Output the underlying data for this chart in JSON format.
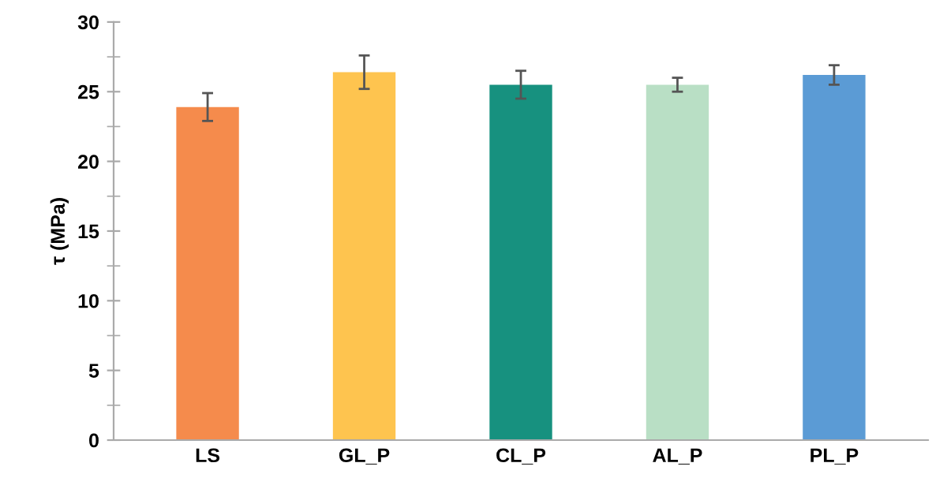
{
  "chart_data": {
    "type": "bar",
    "ylabel": "τ (MPa)",
    "categories": [
      "LS",
      "GL_P",
      "CL_P",
      "AL_P",
      "PL_P"
    ],
    "values": [
      23.9,
      26.4,
      25.5,
      25.5,
      26.2
    ],
    "errors": [
      1.0,
      1.2,
      1.0,
      0.5,
      0.7
    ],
    "colors": [
      "#f58b4c",
      "#fec44f",
      "#17917f",
      "#b9dfc5",
      "#5b9bd5"
    ],
    "ylim": [
      0,
      30
    ],
    "yticks": [
      0,
      5,
      10,
      15,
      20,
      25,
      30
    ],
    "grid": false,
    "legend": false
  }
}
